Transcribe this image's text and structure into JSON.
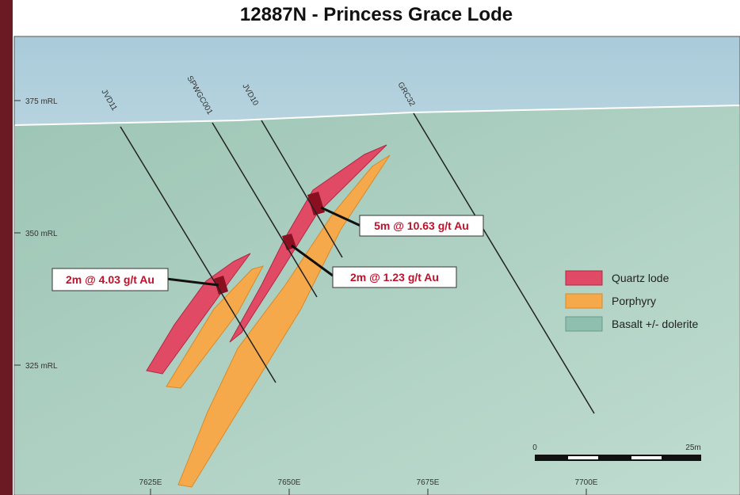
{
  "header": {
    "title": "12887N - Princess Grace Lode"
  },
  "elevation_labels": [
    "375 mRL",
    "350 mRL",
    "325 mRL"
  ],
  "easting_labels": [
    "7625E",
    "7650E",
    "7675E",
    "7700E"
  ],
  "drill_holes": [
    "JVD11",
    "SPWGC001",
    "JVD10",
    "GRC32"
  ],
  "intercepts": [
    "2m @ 4.03 g/t Au",
    "2m @ 1.23 g/t Au",
    "5m @ 10.63 g/t Au"
  ],
  "legend": [
    "Quartz lode",
    "Porphyry",
    "Basalt +/- dolerite"
  ],
  "scale_bar": [
    "0",
    "25m"
  ]
}
